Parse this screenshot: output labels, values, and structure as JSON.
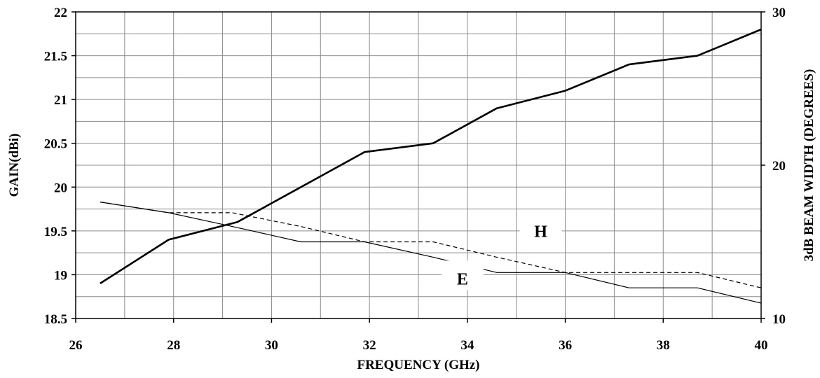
{
  "chart_data": {
    "type": "line",
    "xlabel": "FREQUENCY (GHz)",
    "ylabel_left": "GAIN(dBi)",
    "ylabel_right": "3dB BEAM WIDTH (DEGREES)",
    "xlim": [
      26,
      40
    ],
    "ylim_left": [
      18.5,
      22
    ],
    "ylim_right": [
      10,
      30
    ],
    "x_ticks": [
      "26",
      "28",
      "30",
      "32",
      "34",
      "36",
      "38",
      "40"
    ],
    "y_left_ticks": [
      "18.5",
      "19",
      "19.5",
      "20",
      "20.5",
      "21",
      "21.5",
      "22"
    ],
    "y_right_ticks": [
      "10",
      "20",
      "30"
    ],
    "grid": true,
    "series": [
      {
        "axis": "left",
        "style": "thick-solid",
        "x": [
          26.5,
          27.9,
          29.3,
          30.6,
          31.9,
          33.3,
          34.6,
          36.0,
          37.3,
          38.7,
          40.0
        ],
        "values": [
          18.9,
          19.4,
          19.6,
          20.0,
          20.4,
          20.5,
          20.9,
          21.1,
          21.4,
          21.5,
          21.8
        ]
      },
      {
        "axis": "right",
        "style": "dashed",
        "label": "H",
        "x": [
          26.5,
          27.9,
          29.2,
          30.6,
          31.9,
          33.3,
          34.6,
          36.0,
          37.3,
          38.7,
          40.0
        ],
        "values": [
          17.6,
          16.9,
          16.9,
          16.0,
          15.0,
          15.0,
          14.0,
          13.0,
          13.0,
          13.0,
          12.0
        ]
      },
      {
        "axis": "right",
        "style": "thin-solid",
        "label": "E",
        "x": [
          26.5,
          27.9,
          29.2,
          30.6,
          31.9,
          33.3,
          34.6,
          36.0,
          37.3,
          38.7,
          40.0
        ],
        "values": [
          17.6,
          16.9,
          16.0,
          15.0,
          15.0,
          14.0,
          13.0,
          13.0,
          12.0,
          12.0,
          11.0
        ]
      }
    ]
  }
}
